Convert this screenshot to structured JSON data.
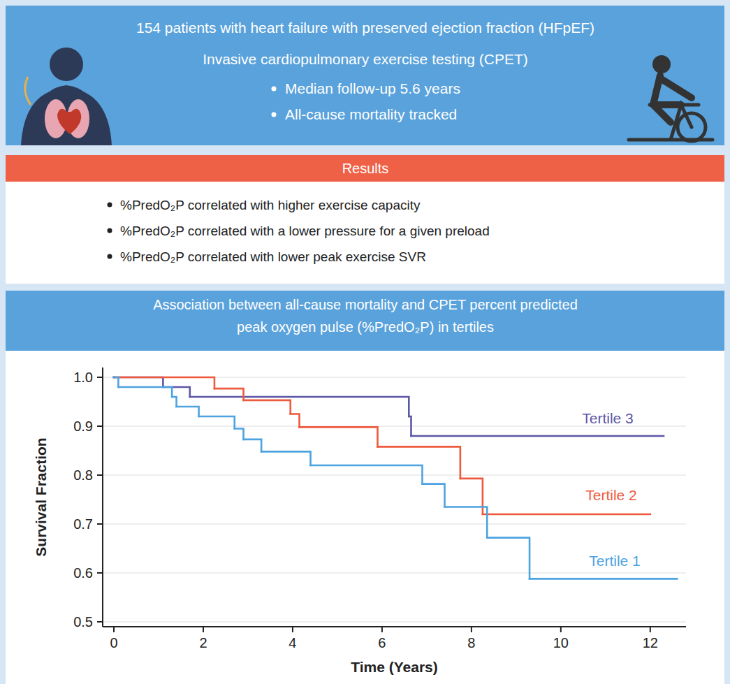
{
  "header": {
    "title": "154 patients with heart failure with preserved ejection fraction (HFpEF)",
    "subtitle": "Invasive cardiopulmonary exercise testing (CPET)",
    "bullets": [
      "Median follow-up 5.6 years",
      "All-cause mortality tracked"
    ]
  },
  "results": {
    "title": "Results",
    "bullets": [
      "%PredO₂P correlated with higher exercise capacity",
      "%PredO₂P correlated with a lower pressure for a given preload",
      "%PredO₂P correlated with lower peak exercise SVR"
    ]
  },
  "chart_data": {
    "type": "step",
    "title": "Association between all-cause mortality and CPET percent predicted peak oxygen pulse (%PredO₂P) in tertiles",
    "x_label": "Time (Years)",
    "y_label": "Survival Fraction",
    "xlim": [
      -0.25,
      12.8
    ],
    "xticks": [
      0,
      2,
      4,
      6,
      8,
      10,
      12
    ],
    "ylim": [
      0.49,
      1.02
    ],
    "yticks": [
      0.5,
      0.6,
      0.7,
      0.8,
      0.9,
      {
        "value": 1,
        "label": "1.0"
      }
    ],
    "grid": true,
    "series": [
      {
        "name": "Tertile 1",
        "color": "#4da3e0",
        "x": [
          0,
          0.1,
          1.3,
          1.4,
          1.9,
          2.7,
          2.9,
          3.3,
          4.4,
          6.9,
          7.4,
          8.35,
          9.3,
          12.6
        ],
        "values": [
          1,
          0.98,
          0.96,
          0.94,
          0.92,
          0.895,
          0.873,
          0.848,
          0.82,
          0.782,
          0.735,
          0.672,
          0.588,
          0.588
        ]
      },
      {
        "name": "Tertile 2",
        "color": "#ee5a3e",
        "x": [
          0,
          2.25,
          2.9,
          3.95,
          4.15,
          5.9,
          7.75,
          8.25,
          12.0
        ],
        "values": [
          1,
          0.977,
          0.953,
          0.925,
          0.898,
          0.858,
          0.793,
          0.72,
          0.72
        ]
      },
      {
        "name": "Tertile 3",
        "color": "#5c57a6",
        "x": [
          0,
          1.1,
          1.7,
          6.6,
          6.65,
          12.3
        ],
        "values": [
          1,
          0.98,
          0.96,
          0.92,
          0.88,
          0.88
        ]
      }
    ]
  }
}
